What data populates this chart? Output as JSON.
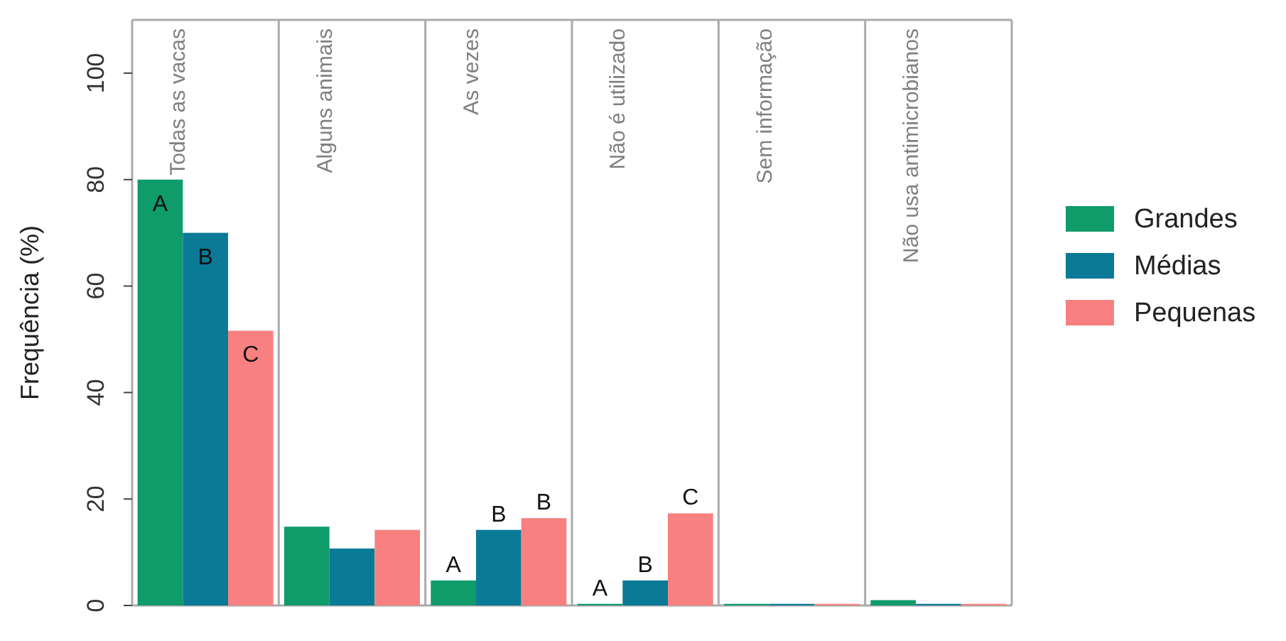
{
  "chart_data": {
    "type": "bar",
    "ylabel": "Frequência (%)",
    "categories": [
      "Todas as vacas",
      "Alguns animais",
      "As vezes",
      "Não é utilizado",
      "Sem informação",
      "Não usa antimicrobianos"
    ],
    "series": [
      {
        "name": "Grandes",
        "color": "#0f9b6a",
        "values": [
          80,
          14.8,
          4.7,
          0.3,
          0.3,
          1.0
        ],
        "value_labels": [
          "A",
          null,
          "A",
          "A",
          null,
          null
        ]
      },
      {
        "name": "Médias",
        "color": "#0a7a96",
        "values": [
          70,
          10.7,
          14.2,
          4.7,
          0.3,
          0.3
        ],
        "value_labels": [
          "B",
          null,
          "B",
          "B",
          null,
          null
        ]
      },
      {
        "name": "Pequenas",
        "color": "#f88080",
        "values": [
          51.6,
          14.2,
          16.4,
          17.3,
          0.3,
          0.3
        ],
        "value_labels": [
          "C",
          null,
          "B",
          "C",
          null,
          null
        ]
      }
    ],
    "ylim": [
      0,
      110
    ],
    "yticks": [
      0,
      20,
      40,
      60,
      80,
      100
    ],
    "legend": "right"
  }
}
